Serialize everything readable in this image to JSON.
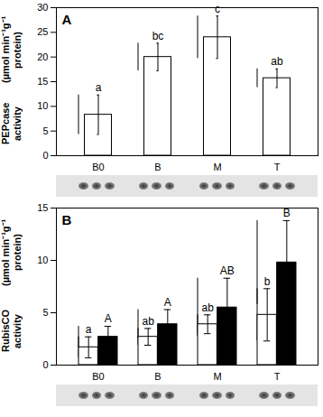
{
  "chart_data": [
    {
      "type": "bar",
      "title": "A",
      "ylabel": "PEPcase activity (µmol min⁻¹g⁻¹ protein)",
      "categories": [
        "B0",
        "B",
        "M",
        "T"
      ],
      "series": [
        {
          "color": "#ffffff",
          "values": [
            8.3,
            20,
            24,
            15.7
          ],
          "errors": [
            4,
            2.8,
            4.3,
            1.9
          ],
          "letters": [
            "a",
            "bc",
            "c",
            "ab"
          ]
        }
      ],
      "ylim": [
        0,
        30
      ],
      "yticks": [
        0,
        5,
        10,
        15,
        20,
        25,
        30
      ]
    },
    {
      "type": "bar",
      "title": "B",
      "ylabel": "RubisCO activity (µmol min⁻¹g⁻¹ protein)",
      "categories": [
        "B0",
        "B",
        "M",
        "T"
      ],
      "series": [
        {
          "color": "#ffffff",
          "values": [
            1.7,
            2.7,
            3.9,
            4.8
          ],
          "errors": [
            1.0,
            0.8,
            0.9,
            2.5
          ],
          "letters": [
            "a",
            "ab",
            "ab",
            "b"
          ]
        },
        {
          "color": "#000000",
          "values": [
            2.7,
            3.9,
            5.5,
            9.8
          ],
          "errors": [
            1.0,
            1.4,
            2.8,
            4.0
          ],
          "letters": [
            "A",
            "A",
            "AB",
            "B"
          ]
        }
      ],
      "ylim": [
        0,
        15
      ],
      "yticks": [
        0,
        5,
        10,
        15
      ]
    }
  ]
}
